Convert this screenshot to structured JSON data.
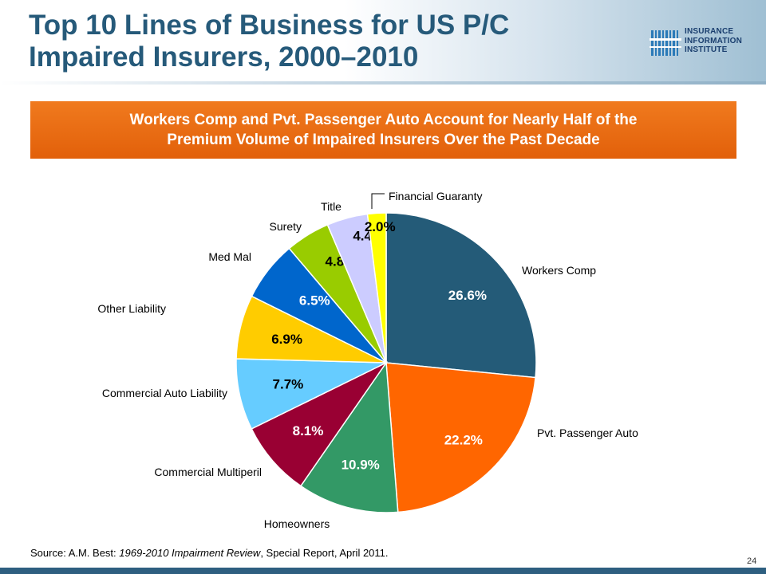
{
  "slide": {
    "title_line1": "Top 10 Lines of Business for US P/C",
    "title_line2": "Impaired Insurers, 2000–2010",
    "banner_line1": "Workers Comp and Pvt. Passenger Auto Account for Nearly Half of the",
    "banner_line2": "Premium Volume of Impaired Insurers Over the Past Decade",
    "logo_lines": [
      "INSURANCE",
      "INFORMATION",
      "INSTITUTE"
    ],
    "source_prefix": "Source: A.M. Best: ",
    "source_italic": "1969-2010 Impairment Review",
    "source_suffix": ", Special Report, April 2011.",
    "page_number": "24"
  },
  "colors": {
    "title": "#265a7a",
    "banner": "#e8690f",
    "footer": "#2e5f80"
  },
  "chart_data": {
    "type": "pie",
    "start_angle_deg": 0,
    "direction": "clockwise",
    "unit": "%",
    "slices": [
      {
        "label": "Workers Comp",
        "value": 26.6,
        "value_label": "26.6%",
        "color": "#245b78",
        "label_color": "#ffffff"
      },
      {
        "label": "Pvt. Passenger Auto",
        "value": 22.2,
        "value_label": "22.2%",
        "color": "#ff6600",
        "label_color": "#ffffff"
      },
      {
        "label": "Homeowners",
        "value": 10.9,
        "value_label": "10.9%",
        "color": "#339966",
        "label_color": "#ffffff"
      },
      {
        "label": "Commercial Multiperil",
        "value": 8.1,
        "value_label": "8.1%",
        "color": "#990033",
        "label_color": "#ffffff"
      },
      {
        "label": "Commercial Auto Liability",
        "value": 7.7,
        "value_label": "7.7%",
        "color": "#66ccff",
        "label_color": "#000000"
      },
      {
        "label": "Other Liability",
        "value": 6.9,
        "value_label": "6.9%",
        "color": "#ffcc00",
        "label_color": "#000000"
      },
      {
        "label": "Med Mal",
        "value": 6.5,
        "value_label": "6.5%",
        "color": "#0066cc",
        "label_color": "#ffffff"
      },
      {
        "label": "Surety",
        "value": 4.8,
        "value_label": "4.8%",
        "color": "#99cc00",
        "label_color": "#000000"
      },
      {
        "label": "Title",
        "value": 4.4,
        "value_label": "4.4%",
        "color": "#ccccff",
        "label_color": "#000000"
      },
      {
        "label": "Financial Guaranty",
        "value": 2.0,
        "value_label": "2.0%",
        "color": "#ffff00",
        "label_color": "#000000"
      }
    ]
  }
}
